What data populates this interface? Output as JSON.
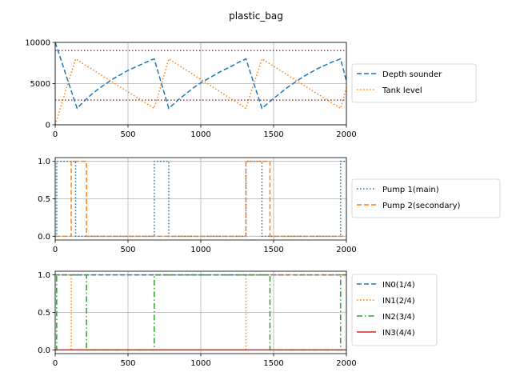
{
  "title": "plastic_bag",
  "chart_data": [
    {
      "type": "line",
      "xlim": [
        0,
        2000
      ],
      "ylim": [
        0,
        10000
      ],
      "xticks": [
        "0",
        "500",
        "1000",
        "1500",
        "2000"
      ],
      "yticks": [
        "0",
        "5000",
        "10000"
      ],
      "ytick_values": [
        0,
        5000,
        10000
      ],
      "grid": true,
      "legend_position": "outside-right",
      "hlines": [
        {
          "y": 9000,
          "color": "#d62728",
          "style": "dotted"
        },
        {
          "y": 3000,
          "color": "#d62728",
          "style": "dotted"
        }
      ],
      "series": [
        {
          "name": "Depth sounder",
          "color": "#1f77b4",
          "style": "dashed",
          "x": [
            0,
            150,
            200,
            250,
            300,
            350,
            400,
            450,
            500,
            550,
            600,
            650,
            680,
            780,
            850,
            900,
            950,
            1000,
            1050,
            1100,
            1150,
            1200,
            1250,
            1310,
            1420,
            1500,
            1550,
            1600,
            1650,
            1700,
            1750,
            1800,
            1850,
            1900,
            1960,
            2000
          ],
          "y": [
            10000,
            2000,
            2900,
            3700,
            4400,
            5000,
            5600,
            6100,
            6600,
            7000,
            7400,
            7800,
            8000,
            2000,
            3100,
            3800,
            4500,
            5100,
            5600,
            6100,
            6600,
            7000,
            7500,
            8000,
            2000,
            3200,
            3900,
            4600,
            5200,
            5800,
            6300,
            6800,
            7200,
            7600,
            8000,
            5300
          ]
        },
        {
          "name": "Tank level",
          "color": "#ff7f0e",
          "style": "dotted",
          "x": [
            0,
            140,
            680,
            780,
            1310,
            1420,
            1960,
            2000
          ],
          "y": [
            0,
            8000,
            2000,
            8000,
            2000,
            8000,
            2000,
            4500
          ]
        }
      ]
    },
    {
      "type": "line",
      "xlim": [
        0,
        2000
      ],
      "ylim": [
        -0.05,
        1.05
      ],
      "xticks": [
        "0",
        "500",
        "1000",
        "1500",
        "2000"
      ],
      "yticks": [
        "0.0",
        "0.5",
        "1.0"
      ],
      "ytick_values": [
        0,
        0.5,
        1
      ],
      "grid": true,
      "legend_position": "outside-right",
      "series": [
        {
          "name": "Pump 1(main)",
          "color": "#1f77b4",
          "style": "dotted",
          "x": [
            0,
            10,
            10,
            140,
            140,
            680,
            680,
            780,
            780,
            1310,
            1310,
            1420,
            1420,
            1960,
            1960,
            2000
          ],
          "y": [
            0,
            0,
            1,
            1,
            0,
            0,
            1,
            1,
            0,
            0,
            1,
            1,
            0,
            0,
            1,
            1
          ]
        },
        {
          "name": "Pump 2(secondary)",
          "color": "#ff7f0e",
          "style": "dashed",
          "x": [
            0,
            110,
            110,
            215,
            215,
            1310,
            1310,
            1475,
            1475,
            2000
          ],
          "y": [
            0,
            0,
            1,
            1,
            0,
            0,
            1,
            1,
            0,
            0
          ]
        }
      ]
    },
    {
      "type": "line",
      "xlim": [
        0,
        2000
      ],
      "ylim": [
        -0.05,
        1.05
      ],
      "xticks": [
        "0",
        "500",
        "1000",
        "1500",
        "2000"
      ],
      "yticks": [
        "0.0",
        "0.5",
        "1.0"
      ],
      "ytick_values": [
        0,
        0.5,
        1
      ],
      "grid": true,
      "legend_position": "outside-right",
      "series": [
        {
          "name": "IN0(1/4)",
          "color": "#1f77b4",
          "style": "dashed",
          "x": [
            0,
            2000
          ],
          "y": [
            1,
            1
          ]
        },
        {
          "name": "IN1(2/4)",
          "color": "#ff7f0e",
          "style": "dotted",
          "x": [
            0,
            110,
            110,
            1310,
            1310,
            2000
          ],
          "y": [
            1,
            1,
            0,
            0,
            1,
            1
          ]
        },
        {
          "name": "IN2(3/4)",
          "color": "#2ca02c",
          "style": "dashdot",
          "x": [
            0,
            10,
            10,
            215,
            215,
            680,
            680,
            1475,
            1475,
            1960,
            1960,
            2000
          ],
          "y": [
            0,
            0,
            1,
            1,
            0,
            0,
            1,
            1,
            0,
            0,
            1,
            1
          ]
        },
        {
          "name": "IN3(4/4)",
          "color": "#d62728",
          "style": "solid",
          "x": [
            0,
            2000
          ],
          "y": [
            0,
            0
          ]
        }
      ]
    }
  ]
}
